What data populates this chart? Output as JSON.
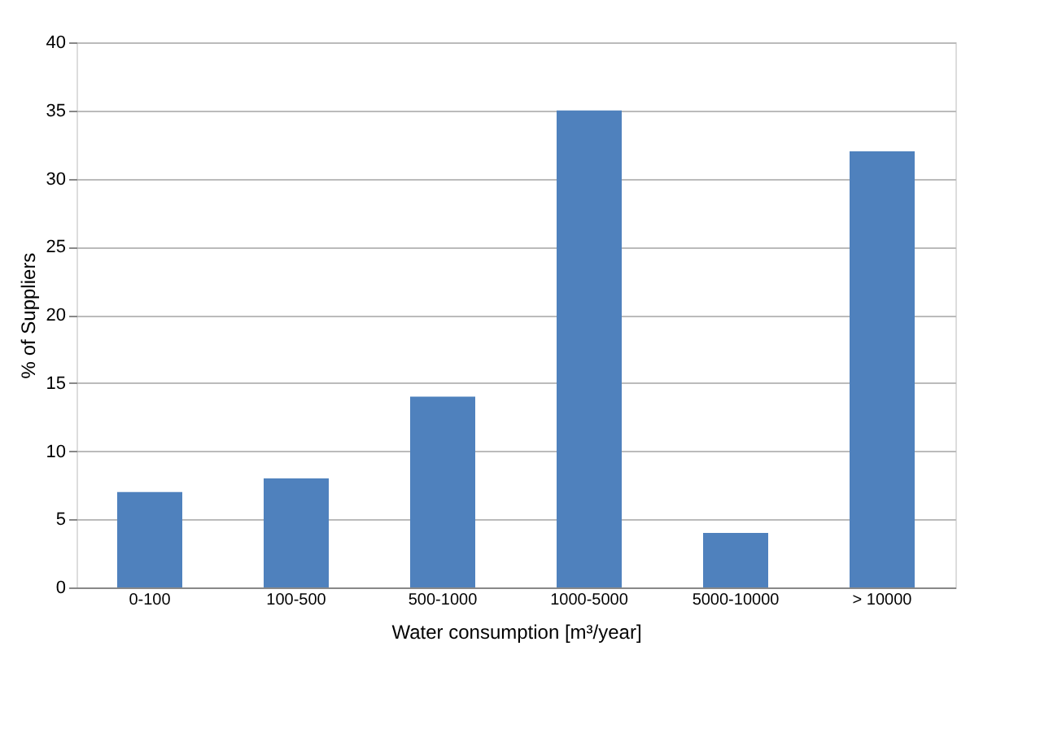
{
  "chart_data": {
    "type": "bar",
    "categories": [
      "0-100",
      "100-500",
      "500-1000",
      "1000-5000",
      "5000-10000",
      "> 10000"
    ],
    "values": [
      7,
      8,
      14,
      35,
      4,
      32
    ],
    "color": "#4f81bd",
    "xlabel": "Water consumption [m³/year]",
    "ylabel": "% of Suppliers",
    "ylim": [
      0,
      40
    ],
    "yticks": [
      0,
      5,
      10,
      15,
      20,
      25,
      30,
      35,
      40
    ],
    "grid": "y"
  }
}
